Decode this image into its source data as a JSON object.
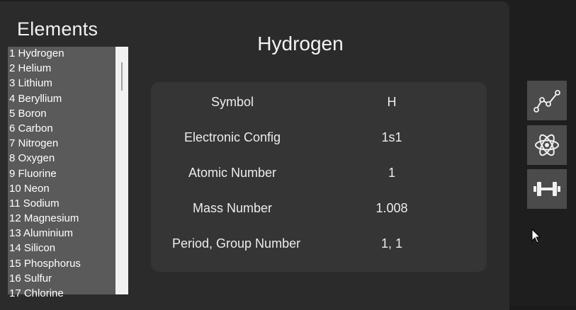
{
  "sidebar": {
    "title": "Elements",
    "items": [
      "1 Hydrogen",
      "2 Helium",
      "3 Lithium",
      "4 Beryllium",
      "5 Boron",
      "6 Carbon",
      "7 Nitrogen",
      "8 Oxygen",
      "9 Fluorine",
      "10 Neon",
      "11 Sodium",
      "12 Magnesium",
      "13 Aluminium",
      "14 Silicon",
      "15 Phosphorus",
      "16 Sulfur",
      "17 Chlorine"
    ]
  },
  "detail": {
    "title": "Hydrogen",
    "rows": [
      {
        "label": "Symbol",
        "value": "H"
      },
      {
        "label": "Electronic Config",
        "value": "1s1"
      },
      {
        "label": "Atomic Number",
        "value": "1"
      },
      {
        "label": "Mass Number",
        "value": "1.008"
      },
      {
        "label": "Period, Group Number",
        "value": "1, 1"
      }
    ]
  },
  "toolbar": {
    "buttons": [
      {
        "icon": "line-chart-icon"
      },
      {
        "icon": "atom-icon"
      },
      {
        "icon": "dumbbell-icon"
      }
    ]
  },
  "colors": {
    "background": "#1e1e1e",
    "window": "#2b2b2b",
    "card": "#353535",
    "list": "#5a5a5a",
    "button": "#4b4b4b"
  }
}
